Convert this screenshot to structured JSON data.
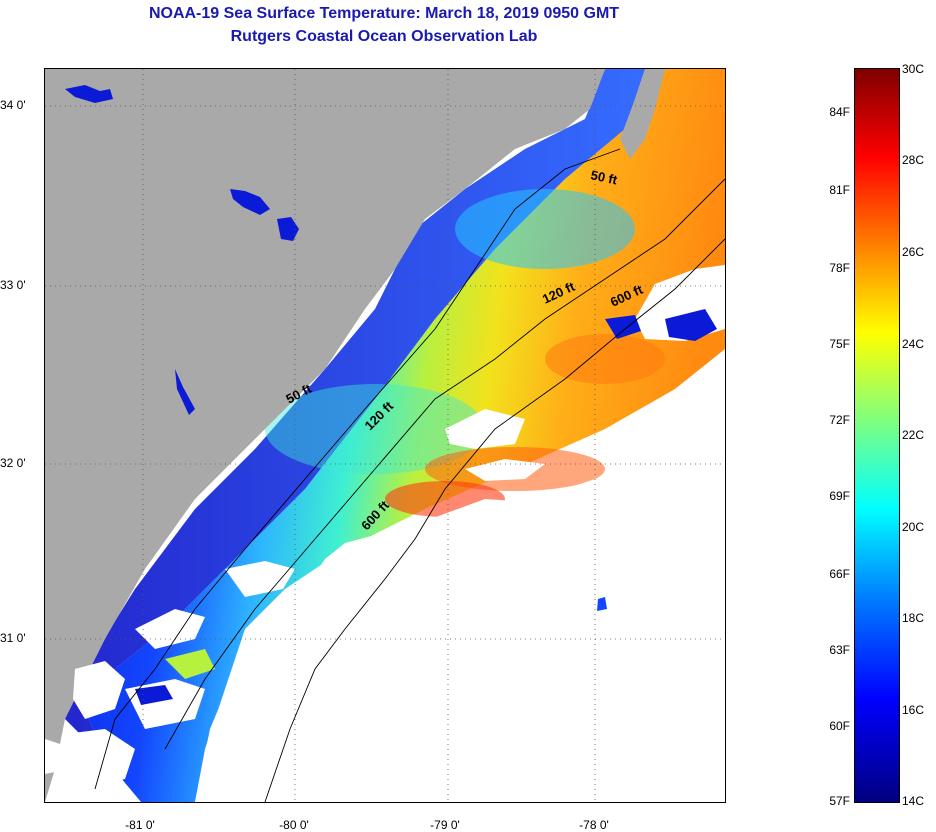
{
  "title": "NOAA-19 Sea Surface Temperature:  March 18, 2019 0950 GMT",
  "subtitle": "Rutgers Coastal Ocean Observation Lab",
  "axes": {
    "lon_ticks": [
      "-81 0'",
      "-80 0'",
      "-79 0'",
      "-78 0'"
    ],
    "lat_ticks": [
      "34 0'",
      "33 0'",
      "32 0'",
      "31 0'"
    ]
  },
  "contour_labels": [
    "50 ft",
    "120 ft",
    "600 ft",
    "50 ft",
    "120 ft",
    "600 ft"
  ],
  "colorbar": {
    "f_labels": [
      "84F",
      "81F",
      "78F",
      "75F",
      "72F",
      "69F",
      "66F",
      "63F",
      "60F",
      "57F"
    ],
    "c_labels": [
      "30C",
      "28C",
      "26C",
      "24C",
      "22C",
      "20C",
      "18C",
      "16C",
      "14C"
    ],
    "range_c": [
      14,
      30
    ],
    "range_f": [
      57,
      86
    ]
  },
  "colors": {
    "land": "#a9a9a9",
    "title": "#1a1ab0",
    "cloud": "#ffffff"
  }
}
